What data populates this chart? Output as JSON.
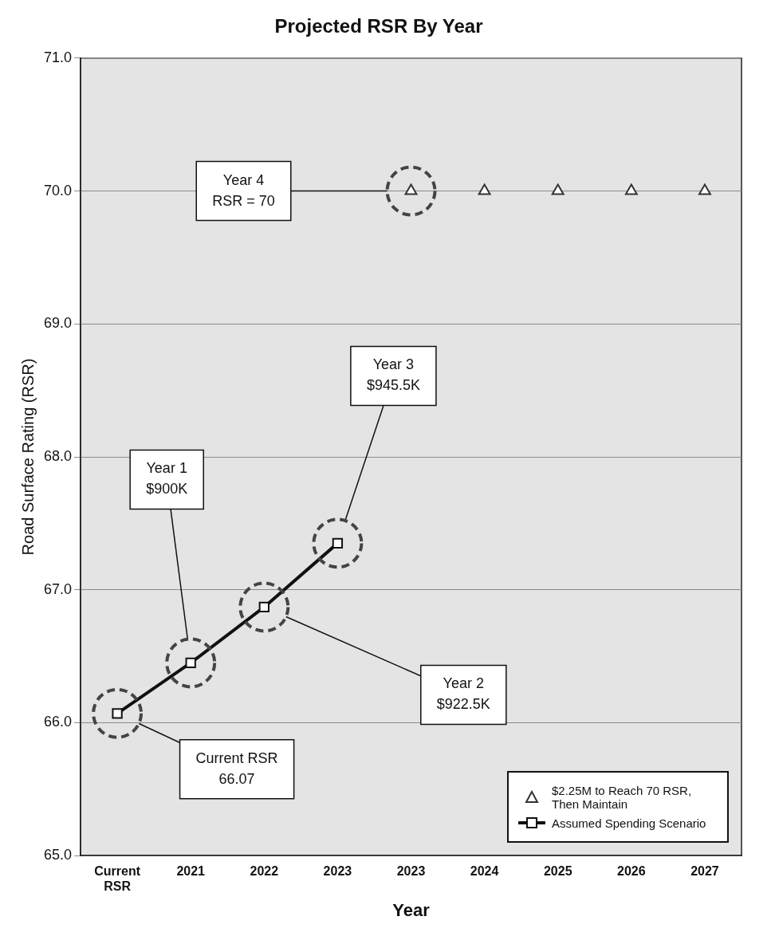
{
  "chart_data": {
    "type": "line",
    "title": "Projected RSR By Year",
    "xlabel": "Year",
    "ylabel": "Road Surface Rating (RSR)",
    "categories": [
      "Current RSR",
      "2021",
      "2022",
      "2023",
      "2023",
      "2024",
      "2025",
      "2026",
      "2027"
    ],
    "series": [
      {
        "name": "$2.25M to Reach 70 RSR, Then Maintain",
        "type": "scatter",
        "marker": "triangle",
        "color": "#333333",
        "values": [
          null,
          null,
          null,
          null,
          70,
          70,
          70,
          70,
          70
        ]
      },
      {
        "name": "Assumed Spending Scenario",
        "marker": "square",
        "color": "#111111",
        "values": [
          66.07,
          66.45,
          66.87,
          67.35,
          null,
          null,
          null,
          null,
          null
        ]
      }
    ],
    "ylim": [
      65,
      71
    ],
    "yticks": [
      {
        "value": 65,
        "label": "65.0"
      },
      {
        "value": 66,
        "label": "66.0"
      },
      {
        "value": 67,
        "label": "67.0"
      },
      {
        "value": 68,
        "label": "68.0"
      },
      {
        "value": 69,
        "label": "69.0"
      },
      {
        "value": 70,
        "label": "70.0"
      },
      {
        "value": 71,
        "label": "71.0"
      }
    ],
    "grid": "y",
    "legend": "bottom right",
    "annotations": [
      "Current RSR\n66.07",
      "Year 1\n$900K",
      "Year 2\n$922.5K",
      "Year 3\n$945.5K",
      "Year 4\nRSR = 70"
    ]
  }
}
